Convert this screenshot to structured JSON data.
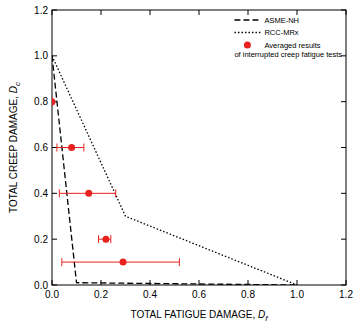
{
  "chart_data": {
    "type": "line",
    "x_label": "TOTAL FATIGUE DAMAGE, Df",
    "y_label": "TOTAL CREEP DAMAGE, Dc",
    "xlim": [
      0,
      1.2
    ],
    "ylim": [
      0,
      1.2
    ],
    "xticks": [
      {
        "value": 0,
        "label": "0.0"
      },
      0.2,
      0.4,
      0.6,
      0.8,
      {
        "value": 1,
        "label": "1.0"
      },
      1.2
    ],
    "yticks": [
      {
        "value": 0,
        "label": "0.0"
      },
      0.2,
      0.4,
      0.6,
      0.8,
      {
        "value": 1,
        "label": "1.0"
      },
      1.2
    ],
    "legend": "upper right",
    "series": [
      {
        "name": "ASME-NH",
        "type": "line",
        "color": "#000000",
        "line_style": "dashed",
        "x": [
          0,
          0.1,
          1
        ],
        "values": [
          1,
          0.01,
          0
        ]
      },
      {
        "name": "RCC-MRx",
        "type": "line",
        "color": "#000000",
        "line_style": "dotted",
        "x": [
          0,
          0.3,
          1
        ],
        "values": [
          1,
          0.3,
          0
        ]
      },
      {
        "name": "Averaged results\nof interrupted creep fatigue tests",
        "type": "scatter",
        "color": "#e8231f",
        "marker": "circle",
        "x": [
          0,
          0.08,
          0.15,
          0.22,
          0.29
        ],
        "values": [
          0.8,
          0.6,
          0.4,
          0.2,
          0.1
        ],
        "xerr_minus": [
          0,
          0.06,
          0.12,
          0.03,
          0.25
        ],
        "xerr_plus": [
          0,
          0.05,
          0.11,
          0.02,
          0.23
        ]
      }
    ]
  }
}
